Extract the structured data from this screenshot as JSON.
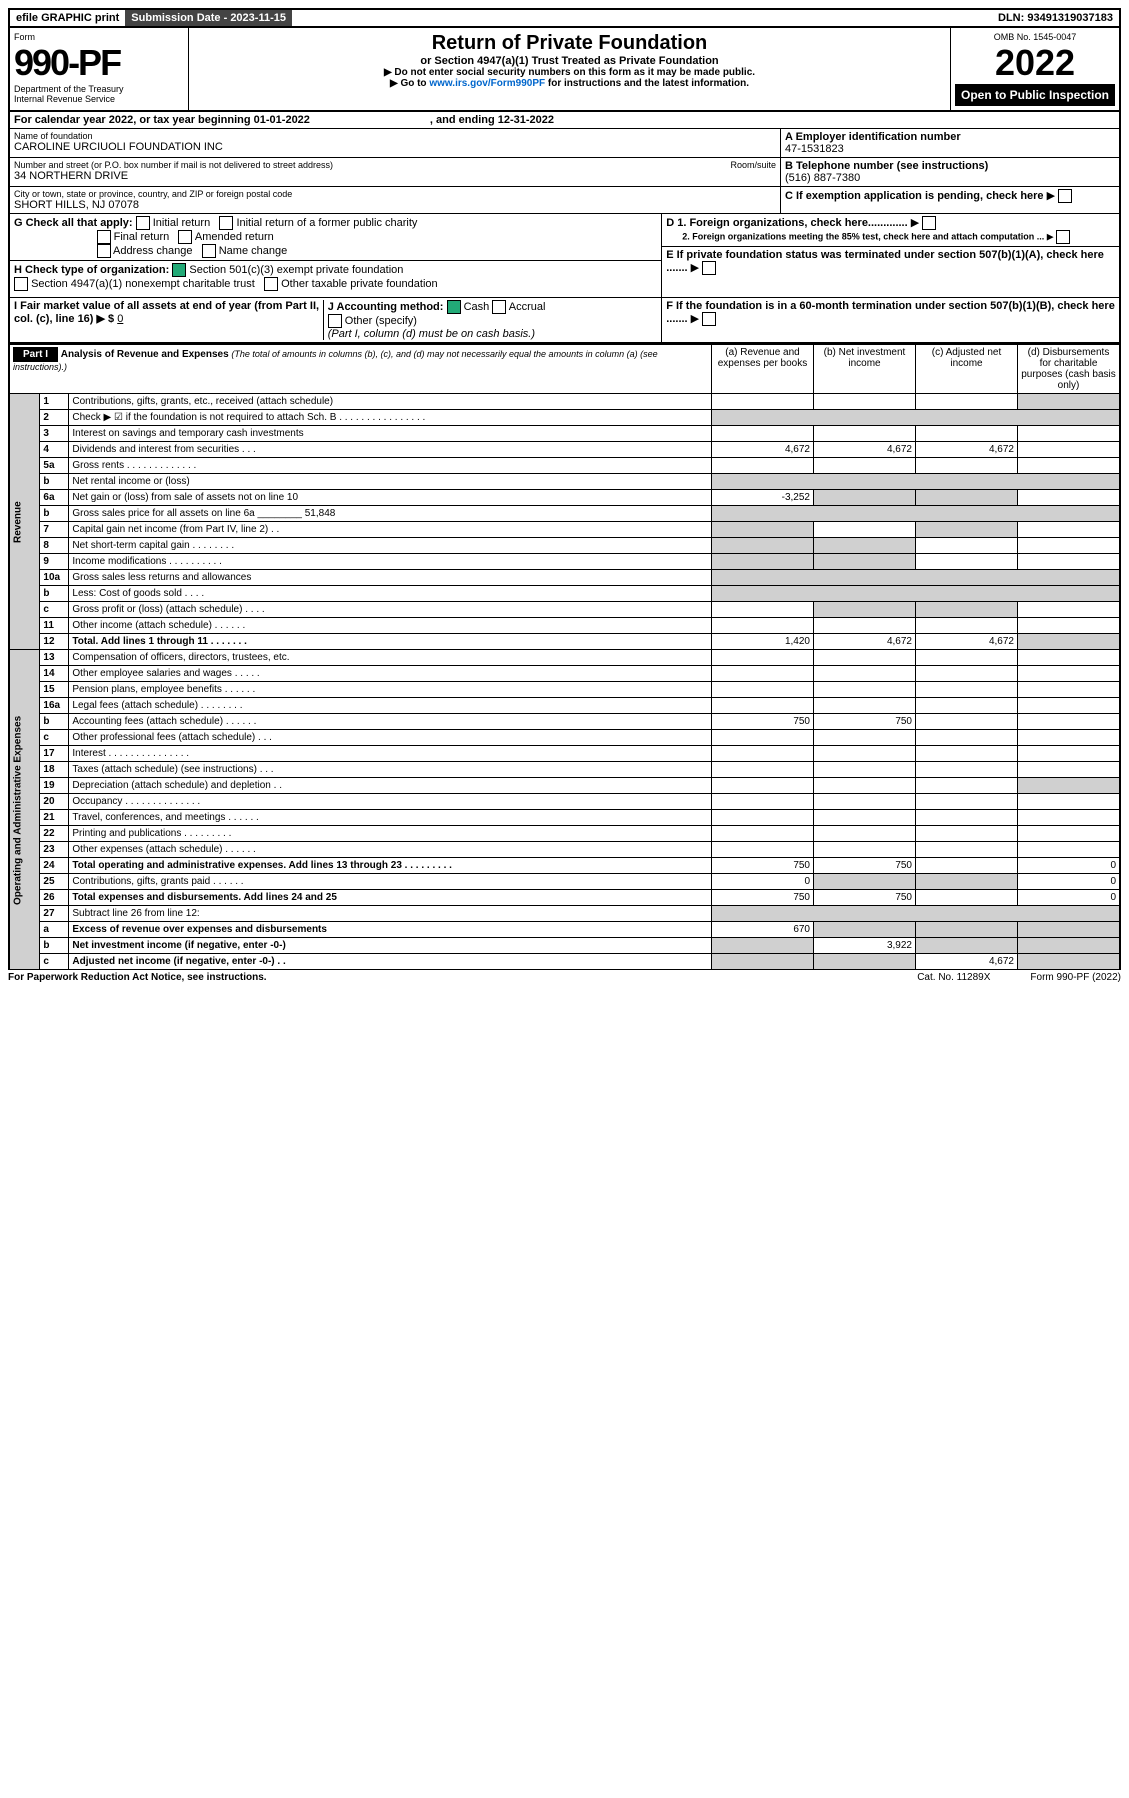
{
  "topbar": {
    "efile": "efile GRAPHIC print",
    "subdate_label": "Submission Date - 2023-11-15",
    "dln": "DLN: 93491319037183"
  },
  "header": {
    "form_word": "Form",
    "form_num": "990-PF",
    "dept": "Department of the Treasury",
    "irs": "Internal Revenue Service",
    "omb": "OMB No. 1545-0047",
    "title": "Return of Private Foundation",
    "subtitle": "or Section 4947(a)(1) Trust Treated as Private Foundation",
    "note1": "▶ Do not enter social security numbers on this form as it may be made public.",
    "note2": "▶ Go to ",
    "note2_link": "www.irs.gov/Form990PF",
    "note2_tail": " for instructions and the latest information.",
    "year": "2022",
    "open": "Open to Public Inspection"
  },
  "cal": {
    "text": "For calendar year 2022, or tax year beginning 01-01-2022",
    "end": ", and ending 12-31-2022"
  },
  "id": {
    "name_lab": "Name of foundation",
    "name": "CAROLINE URCIUOLI FOUNDATION INC",
    "addr_lab": "Number and street (or P.O. box number if mail is not delivered to street address)",
    "room": "Room/suite",
    "addr": "34 NORTHERN DRIVE",
    "city_lab": "City or town, state or province, country, and ZIP or foreign postal code",
    "city": "SHORT HILLS, NJ  07078",
    "a_lab": "A Employer identification number",
    "a_val": "47-1531823",
    "b_lab": "B Telephone number (see instructions)",
    "b_val": "(516) 887-7380",
    "c_lab": "C If exemption application is pending, check here",
    "d1": "D 1. Foreign organizations, check here.............",
    "d2": "2. Foreign organizations meeting the 85% test, check here and attach computation ...",
    "e": "E  If private foundation status was terminated under section 507(b)(1)(A), check here .......",
    "f": "F  If the foundation is in a 60-month termination under section 507(b)(1)(B), check here ......."
  },
  "g": {
    "lab": "G Check all that apply:",
    "o": [
      "Initial return",
      "Initial return of a former public charity",
      "Final return",
      "Amended return",
      "Address change",
      "Name change"
    ]
  },
  "h": {
    "lab": "H Check type of organization:",
    "o1": "Section 501(c)(3) exempt private foundation",
    "o2": "Section 4947(a)(1) nonexempt charitable trust",
    "o3": "Other taxable private foundation"
  },
  "i": {
    "lab": "I Fair market value of all assets at end of year (from Part II, col. (c), line 16) ▶ $",
    "val": "0"
  },
  "j": {
    "lab": "J Accounting method:",
    "o": [
      "Cash",
      "Accrual",
      "Other (specify)"
    ],
    "note": "(Part I, column (d) must be on cash basis.)"
  },
  "part1": {
    "lab": "Part I",
    "title": "Analysis of Revenue and Expenses",
    "note": "(The total of amounts in columns (b), (c), and (d) may not necessarily equal the amounts in column (a) (see instructions).)",
    "cols": [
      "(a) Revenue and expenses per books",
      "(b) Net investment income",
      "(c) Adjusted net income",
      "(d) Disbursements for charitable purposes (cash basis only)"
    ]
  },
  "rev_lab": "Revenue",
  "oae_lab": "Operating and Administrative Expenses",
  "rows": [
    {
      "n": "1",
      "d": "Contributions, gifts, grants, etc., received (attach schedule)",
      "a": "",
      "b": "",
      "c": "",
      "ds": "s"
    },
    {
      "n": "2",
      "d": "Check ▶ ☑ if the foundation is not required to attach Sch. B  . . . . . . . . . . . . . . . .",
      "shade": true
    },
    {
      "n": "3",
      "d": "Interest on savings and temporary cash investments"
    },
    {
      "n": "4",
      "d": "Dividends and interest from securities  . . .",
      "a": "4,672",
      "b": "4,672",
      "c": "4,672"
    },
    {
      "n": "5a",
      "d": "Gross rents  . . . . . . . . . . . . ."
    },
    {
      "n": "b",
      "d": "Net rental income or (loss)",
      "shade": true
    },
    {
      "n": "6a",
      "d": "Net gain or (loss) from sale of assets not on line 10",
      "a": "-3,252",
      "bs": "s",
      "cs": "s"
    },
    {
      "n": "b",
      "d": "Gross sales price for all assets on line 6a ________ 51,848",
      "shade": true
    },
    {
      "n": "7",
      "d": "Capital gain net income (from Part IV, line 2)  . .",
      "as": "s",
      "cs": "s"
    },
    {
      "n": "8",
      "d": "Net short-term capital gain  . . . . . . . .",
      "as": "s",
      "bs": "s"
    },
    {
      "n": "9",
      "d": "Income modifications  . . . . . . . . . .",
      "as": "s",
      "bs": "s"
    },
    {
      "n": "10a",
      "d": "Gross sales less returns and allowances",
      "shade": true
    },
    {
      "n": "b",
      "d": "Less: Cost of goods sold  . . . .",
      "shade": true
    },
    {
      "n": "c",
      "d": "Gross profit or (loss) (attach schedule)  . . . .",
      "bs": "s",
      "cs": "s"
    },
    {
      "n": "11",
      "d": "Other income (attach schedule)  . . . . . ."
    },
    {
      "n": "12",
      "d": "Total. Add lines 1 through 11  . . . . . . .",
      "bold": true,
      "a": "1,420",
      "b": "4,672",
      "c": "4,672",
      "ds": "s"
    }
  ],
  "erows": [
    {
      "n": "13",
      "d": "Compensation of officers, directors, trustees, etc."
    },
    {
      "n": "14",
      "d": "Other employee salaries and wages  . . . . ."
    },
    {
      "n": "15",
      "d": "Pension plans, employee benefits  . . . . . ."
    },
    {
      "n": "16a",
      "d": "Legal fees (attach schedule)  . . . . . . . ."
    },
    {
      "n": "b",
      "d": "Accounting fees (attach schedule)  . . . . . .",
      "a": "750",
      "b": "750"
    },
    {
      "n": "c",
      "d": "Other professional fees (attach schedule)  . . ."
    },
    {
      "n": "17",
      "d": "Interest  . . . . . . . . . . . . . . ."
    },
    {
      "n": "18",
      "d": "Taxes (attach schedule) (see instructions)  . . ."
    },
    {
      "n": "19",
      "d": "Depreciation (attach schedule) and depletion  . .",
      "ds": "s"
    },
    {
      "n": "20",
      "d": "Occupancy  . . . . . . . . . . . . . ."
    },
    {
      "n": "21",
      "d": "Travel, conferences, and meetings  . . . . . ."
    },
    {
      "n": "22",
      "d": "Printing and publications  . . . . . . . . ."
    },
    {
      "n": "23",
      "d": "Other expenses (attach schedule)  . . . . . ."
    },
    {
      "n": "24",
      "d": "Total operating and administrative expenses. Add lines 13 through 23  . . . . . . . . .",
      "bold": true,
      "a": "750",
      "b": "750",
      "c": "",
      "dv": "0"
    },
    {
      "n": "25",
      "d": "Contributions, gifts, grants paid  . . . . . .",
      "a": "0",
      "bs": "s",
      "cs": "s",
      "dv": "0"
    },
    {
      "n": "26",
      "d": "Total expenses and disbursements. Add lines 24 and 25",
      "bold": true,
      "a": "750",
      "b": "750",
      "c": "",
      "dv": "0"
    },
    {
      "n": "27",
      "d": "Subtract line 26 from line 12:",
      "shade2": true
    },
    {
      "n": "a",
      "d": "Excess of revenue over expenses and disbursements",
      "bold": true,
      "a": "670",
      "bs": "s",
      "cs": "s",
      "ds": "s"
    },
    {
      "n": "b",
      "d": "Net investment income (if negative, enter -0-)",
      "bold": true,
      "as": "s",
      "b": "3,922",
      "cs": "s",
      "ds": "s"
    },
    {
      "n": "c",
      "d": "Adjusted net income (if negative, enter -0-)  . .",
      "bold": true,
      "as": "s",
      "bs": "s",
      "c": "4,672",
      "ds": "s"
    }
  ],
  "footer": {
    "l": "For Paperwork Reduction Act Notice, see instructions.",
    "m": "Cat. No. 11289X",
    "r": "Form 990-PF (2022)"
  }
}
